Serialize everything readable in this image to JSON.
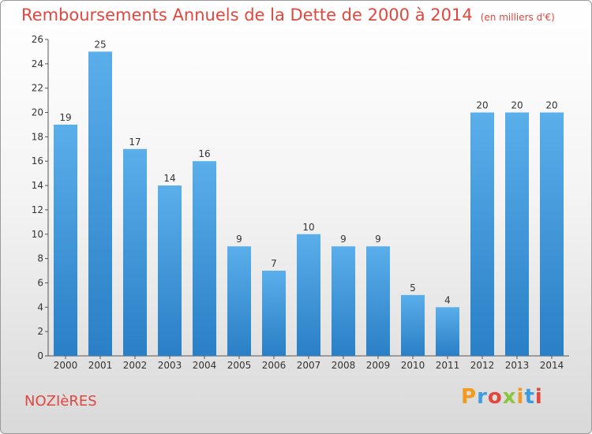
{
  "chart_data": {
    "type": "bar",
    "title": "Remboursements Annuels de la Dette de 2000 à 2014",
    "subtitle": "(en milliers d'€)",
    "categories": [
      "2000",
      "2001",
      "2002",
      "2003",
      "2004",
      "2005",
      "2006",
      "2007",
      "2008",
      "2009",
      "2010",
      "2011",
      "2012",
      "2013",
      "2014"
    ],
    "values": [
      19,
      25,
      17,
      14,
      16,
      9,
      7,
      10,
      9,
      9,
      5,
      4,
      20,
      20,
      20
    ],
    "ylim": [
      0,
      26
    ],
    "yticks": [
      0,
      2,
      4,
      6,
      8,
      10,
      12,
      14,
      16,
      18,
      20,
      22,
      24,
      26
    ],
    "grid": false,
    "bar_color": "#3f9ee4"
  },
  "footer": {
    "town": "NOZIèRES",
    "logo": "Proxiti"
  },
  "colors": {
    "title": "#e0473f",
    "logo_letters": [
      "#f39a1e",
      "#3d9be0",
      "#e2473f",
      "#8cc63f",
      "#f39a1e",
      "#3d9be0",
      "#e2473f"
    ]
  }
}
